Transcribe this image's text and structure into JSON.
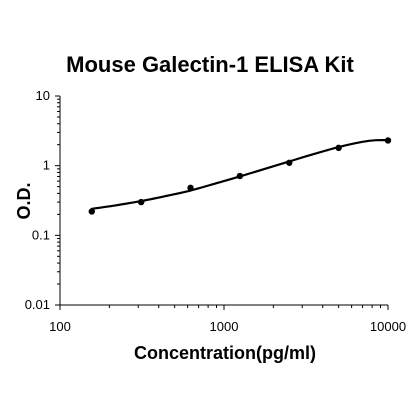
{
  "chart_data": {
    "type": "scatter",
    "title": "Mouse Galectin-1 ELISA Kit",
    "xlabel": "Concentration(pg/ml)",
    "ylabel": "O.D.",
    "x_scale": "log",
    "y_scale": "log",
    "xlim": [
      100,
      10000
    ],
    "ylim": [
      0.01,
      10
    ],
    "x_ticks": [
      "100",
      "1000",
      "10000"
    ],
    "y_ticks": [
      "0.01",
      "0.1",
      "1",
      "10"
    ],
    "grid": false,
    "legend": "none",
    "series": [
      {
        "x": [
          156.25,
          312.5,
          625,
          1250,
          2500,
          5000,
          10000
        ],
        "y": [
          0.22,
          0.3,
          0.48,
          0.71,
          1.1,
          1.8,
          2.3
        ]
      }
    ],
    "fit_curve": {
      "x": [
        156.25,
        220,
        312.5,
        450,
        625,
        900,
        1250,
        1800,
        2500,
        3500,
        5000,
        7000,
        8500,
        10000
      ],
      "y": [
        0.24,
        0.27,
        0.31,
        0.37,
        0.44,
        0.56,
        0.7,
        0.91,
        1.15,
        1.46,
        1.85,
        2.2,
        2.32,
        2.32
      ]
    },
    "colors": {
      "axis": "#000000",
      "points": "#000000",
      "curve": "#000000"
    }
  }
}
